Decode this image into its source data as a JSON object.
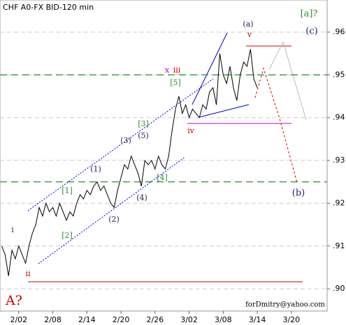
{
  "chart_data": {
    "type": "line",
    "title": "CHF A0-FX BID-120 min",
    "x": [
      -5,
      -4,
      -3,
      -2,
      -1,
      0,
      1,
      2,
      3,
      4,
      5,
      6,
      7,
      8,
      9,
      10,
      11,
      12,
      13,
      14,
      15,
      16,
      17,
      18,
      19,
      20,
      21,
      22,
      23,
      24,
      25,
      26,
      27,
      28,
      29,
      30,
      31,
      32,
      33,
      34,
      35,
      36,
      37,
      38,
      39,
      40,
      41,
      42,
      43,
      44,
      45,
      46,
      47,
      48,
      49,
      50,
      51,
      52,
      53,
      54,
      55,
      56,
      57,
      58,
      59,
      60,
      61,
      62,
      63,
      64,
      65,
      66,
      67,
      68,
      69,
      70
    ],
    "series": [
      {
        "color": "#000000",
        "values": [
          0.91,
          0.908,
          0.903,
          0.909,
          0.907,
          0.91,
          0.908,
          0.906,
          0.91,
          0.913,
          0.915,
          0.919,
          0.917,
          0.92,
          0.918,
          0.919,
          0.917,
          0.92,
          0.918,
          0.916,
          0.918,
          0.917,
          0.92,
          0.922,
          0.921,
          0.923,
          0.922,
          0.924,
          0.925,
          0.923,
          0.924,
          0.922,
          0.92,
          0.919,
          0.923,
          0.926,
          0.929,
          0.928,
          0.931,
          0.929,
          0.927,
          0.924,
          0.93,
          0.929,
          0.93,
          0.928,
          0.931,
          0.929,
          0.928,
          0.931,
          0.937,
          0.942,
          0.945,
          0.941,
          0.943,
          0.94,
          0.942,
          0.941,
          0.94,
          0.943,
          0.942,
          0.946,
          0.947,
          0.943,
          0.955,
          0.95,
          0.948,
          0.952,
          0.947,
          0.944,
          0.95,
          0.953,
          0.952,
          0.956,
          0.949,
          0.947
        ]
      }
    ],
    "xlim": [
      -5.5,
      90.5
    ],
    "xticks": [
      {
        "value": 0,
        "label": "2/02"
      },
      {
        "value": 10,
        "label": "2/08"
      },
      {
        "value": 20,
        "label": "2/14"
      },
      {
        "value": 30,
        "label": "2/20"
      },
      {
        "value": 40,
        "label": "2/26"
      },
      {
        "value": 50,
        "label": "3/02"
      },
      {
        "value": 60,
        "label": "3/08"
      },
      {
        "value": 70,
        "label": "3/14"
      },
      {
        "value": 80,
        "label": "3/20"
      }
    ],
    "ylim": [
      0.8948,
      0.9675
    ],
    "yticks": [
      {
        "value": 0.9,
        "label": ".90"
      },
      {
        "value": 0.91,
        "label": ".91"
      },
      {
        "value": 0.92,
        "label": ".92"
      },
      {
        "value": 0.93,
        "label": ".93"
      },
      {
        "value": 0.94,
        "label": ".94"
      },
      {
        "value": 0.95,
        "label": ".95"
      },
      {
        "value": 0.96,
        "label": ".96"
      }
    ],
    "levels": [
      {
        "value": 0.95,
        "color": "#2e8b2e"
      },
      {
        "value": 0.925,
        "color": "#2e8b2e"
      }
    ],
    "annotations": [
      "(a)",
      "v",
      "[a]?",
      "(c)",
      "x",
      "iii",
      "[5]",
      "iv",
      "[3]",
      "(5)",
      "(3)",
      "(1)",
      "[1]",
      "[4]",
      "(4)",
      "(2)",
      "[2]",
      "i",
      "ii",
      "(b)",
      "A?",
      "forDmitry@yahoo.com"
    ]
  }
}
